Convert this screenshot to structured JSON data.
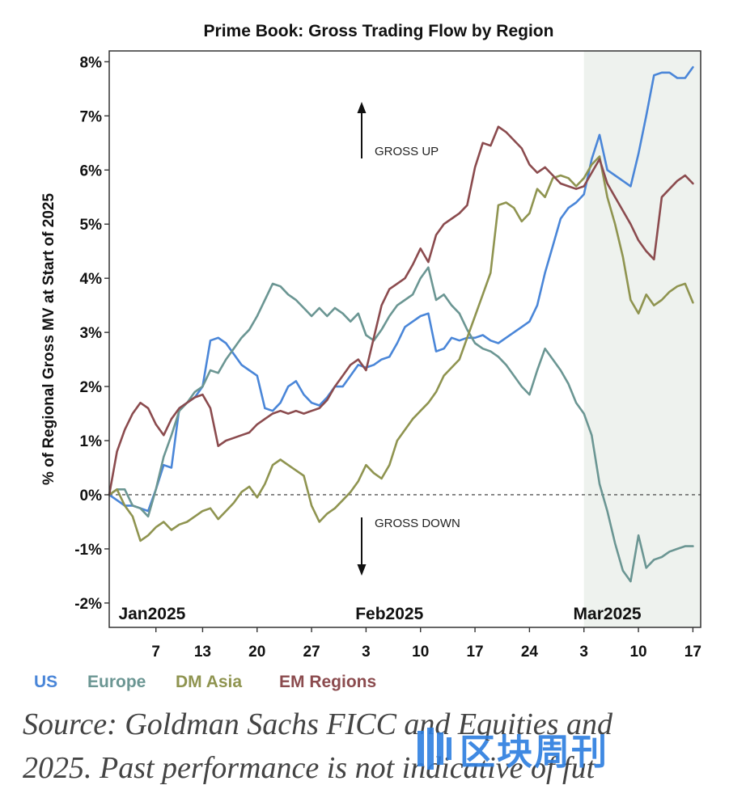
{
  "chart_data": {
    "type": "line",
    "title": "Prime Book: Gross Trading Flow by Region",
    "ylabel": "% of Regional Gross MV at Start of 2025",
    "ylim": [
      -2,
      8
    ],
    "xlim": [
      0,
      75
    ],
    "y_ticks": [
      {
        "v": 8,
        "label": "8%"
      },
      {
        "v": 7,
        "label": "7%"
      },
      {
        "v": 6,
        "label": "6%"
      },
      {
        "v": 5,
        "label": "5%"
      },
      {
        "v": 4,
        "label": "4%"
      },
      {
        "v": 3,
        "label": "3%"
      },
      {
        "v": 2,
        "label": "2%"
      },
      {
        "v": 1,
        "label": "1%"
      },
      {
        "v": 0,
        "label": "0%"
      },
      {
        "v": -1,
        "label": "-1%"
      },
      {
        "v": -2,
        "label": "-2%"
      }
    ],
    "x_ticks": [
      {
        "x": 6,
        "label": "7"
      },
      {
        "x": 12,
        "label": "13"
      },
      {
        "x": 19,
        "label": "20"
      },
      {
        "x": 26,
        "label": "27"
      },
      {
        "x": 33,
        "label": "3"
      },
      {
        "x": 40,
        "label": "10"
      },
      {
        "x": 47,
        "label": "17"
      },
      {
        "x": 54,
        "label": "24"
      },
      {
        "x": 61,
        "label": "3"
      },
      {
        "x": 68,
        "label": "10"
      },
      {
        "x": 75,
        "label": "17"
      }
    ],
    "month_labels": [
      {
        "x": 5.5,
        "label": "Jan2025"
      },
      {
        "x": 36,
        "label": "Feb2025"
      },
      {
        "x": 64,
        "label": "Mar2025"
      }
    ],
    "shaded_region": {
      "from": 61,
      "to": 76,
      "color": "#eef2ee"
    },
    "reference_line": {
      "y": 0,
      "style": "dashed"
    },
    "annotations": {
      "up": "GROSS UP",
      "down": "GROSS DOWN"
    },
    "series": [
      {
        "name": "US",
        "color": "#4a86d8",
        "x": [
          0,
          1,
          2,
          3,
          4,
          5,
          6,
          7,
          8,
          9,
          10,
          11,
          12,
          13,
          14,
          15,
          16,
          17,
          18,
          19,
          20,
          21,
          22,
          23,
          24,
          25,
          26,
          27,
          28,
          29,
          30,
          31,
          32,
          33,
          34,
          35,
          36,
          37,
          38,
          39,
          40,
          41,
          42,
          43,
          44,
          45,
          46,
          47,
          48,
          49,
          50,
          51,
          52,
          53,
          54,
          55,
          56,
          57,
          58,
          59,
          60,
          61,
          62,
          63,
          64,
          65,
          66,
          67,
          68,
          69,
          70,
          71,
          72,
          73,
          74,
          75
        ],
        "y": [
          0,
          -0.1,
          -0.2,
          -0.2,
          -0.25,
          -0.3,
          0.1,
          0.55,
          0.5,
          1.6,
          1.7,
          1.8,
          2.0,
          2.85,
          2.9,
          2.8,
          2.6,
          2.4,
          2.3,
          2.2,
          1.6,
          1.55,
          1.7,
          2.0,
          2.1,
          1.85,
          1.7,
          1.65,
          1.8,
          2.0,
          2.0,
          2.2,
          2.4,
          2.35,
          2.4,
          2.5,
          2.55,
          2.8,
          3.1,
          3.2,
          3.3,
          3.35,
          2.65,
          2.7,
          2.9,
          2.85,
          2.9,
          2.9,
          2.95,
          2.85,
          2.8,
          2.9,
          3.0,
          3.1,
          3.2,
          3.5,
          4.1,
          4.6,
          5.1,
          5.3,
          5.4,
          5.55,
          6.2,
          6.65,
          6.0,
          5.9,
          5.8,
          5.7,
          6.3,
          7.0,
          7.75,
          7.8,
          7.8,
          7.7,
          7.7,
          7.9
        ]
      },
      {
        "name": "Europe",
        "color": "#6b9693",
        "x": [
          0,
          1,
          2,
          3,
          4,
          5,
          6,
          7,
          8,
          9,
          10,
          11,
          12,
          13,
          14,
          15,
          16,
          17,
          18,
          19,
          20,
          21,
          22,
          23,
          24,
          25,
          26,
          27,
          28,
          29,
          30,
          31,
          32,
          33,
          34,
          35,
          36,
          37,
          38,
          39,
          40,
          41,
          42,
          43,
          44,
          45,
          46,
          47,
          48,
          49,
          50,
          51,
          52,
          53,
          54,
          55,
          56,
          57,
          58,
          59,
          60,
          61,
          62,
          63,
          64,
          65,
          66,
          67,
          68,
          69,
          70,
          71,
          72,
          73,
          74,
          75
        ],
        "y": [
          0,
          0.1,
          0.1,
          -0.2,
          -0.25,
          -0.4,
          0.1,
          0.7,
          1.1,
          1.55,
          1.7,
          1.9,
          2.0,
          2.3,
          2.25,
          2.5,
          2.7,
          2.9,
          3.05,
          3.3,
          3.6,
          3.9,
          3.85,
          3.7,
          3.6,
          3.45,
          3.3,
          3.45,
          3.3,
          3.45,
          3.35,
          3.2,
          3.35,
          2.95,
          2.85,
          3.05,
          3.3,
          3.5,
          3.6,
          3.7,
          4.0,
          4.2,
          3.6,
          3.7,
          3.5,
          3.35,
          3.05,
          2.8,
          2.7,
          2.65,
          2.55,
          2.4,
          2.2,
          2.0,
          1.85,
          2.3,
          2.7,
          2.5,
          2.3,
          2.05,
          1.7,
          1.5,
          1.1,
          0.2,
          -0.3,
          -0.9,
          -1.4,
          -1.6,
          -0.75,
          -1.35,
          -1.2,
          -1.15,
          -1.05,
          -1.0,
          -0.95,
          -0.95
        ]
      },
      {
        "name": "DM Asia",
        "color": "#8f9450",
        "x": [
          0,
          1,
          2,
          3,
          4,
          5,
          6,
          7,
          8,
          9,
          10,
          11,
          12,
          13,
          14,
          15,
          16,
          17,
          18,
          19,
          20,
          21,
          22,
          23,
          24,
          25,
          26,
          27,
          28,
          29,
          30,
          31,
          32,
          33,
          34,
          35,
          36,
          37,
          38,
          39,
          40,
          41,
          42,
          43,
          44,
          45,
          46,
          47,
          48,
          49,
          50,
          51,
          52,
          53,
          54,
          55,
          56,
          57,
          58,
          59,
          60,
          61,
          62,
          63,
          64,
          65,
          66,
          67,
          68,
          69,
          70,
          71,
          72,
          73,
          74,
          75
        ],
        "y": [
          0,
          0.1,
          -0.2,
          -0.4,
          -0.85,
          -0.75,
          -0.6,
          -0.5,
          -0.65,
          -0.55,
          -0.5,
          -0.4,
          -0.3,
          -0.25,
          -0.45,
          -0.3,
          -0.15,
          0.05,
          0.15,
          -0.05,
          0.2,
          0.55,
          0.65,
          0.55,
          0.45,
          0.35,
          -0.2,
          -0.5,
          -0.35,
          -0.25,
          -0.1,
          0.05,
          0.25,
          0.55,
          0.4,
          0.3,
          0.55,
          1.0,
          1.2,
          1.4,
          1.55,
          1.7,
          1.9,
          2.2,
          2.35,
          2.5,
          2.9,
          3.3,
          3.7,
          4.1,
          5.35,
          5.4,
          5.3,
          5.05,
          5.2,
          5.65,
          5.5,
          5.85,
          5.9,
          5.85,
          5.7,
          5.85,
          6.1,
          6.25,
          5.5,
          5.0,
          4.4,
          3.6,
          3.35,
          3.7,
          3.5,
          3.6,
          3.75,
          3.85,
          3.9,
          3.55
        ]
      },
      {
        "name": "EM Regions",
        "color": "#8b4b4e",
        "x": [
          0,
          1,
          2,
          3,
          4,
          5,
          6,
          7,
          8,
          9,
          10,
          11,
          12,
          13,
          14,
          15,
          16,
          17,
          18,
          19,
          20,
          21,
          22,
          23,
          24,
          25,
          26,
          27,
          28,
          29,
          30,
          31,
          32,
          33,
          34,
          35,
          36,
          37,
          38,
          39,
          40,
          41,
          42,
          43,
          44,
          45,
          46,
          47,
          48,
          49,
          50,
          51,
          52,
          53,
          54,
          55,
          56,
          57,
          58,
          59,
          60,
          61,
          62,
          63,
          64,
          65,
          66,
          67,
          68,
          69,
          70,
          71,
          72,
          73,
          74,
          75
        ],
        "y": [
          0,
          0.8,
          1.2,
          1.5,
          1.7,
          1.6,
          1.3,
          1.1,
          1.4,
          1.6,
          1.7,
          1.8,
          1.85,
          1.6,
          0.9,
          1.0,
          1.05,
          1.1,
          1.15,
          1.3,
          1.4,
          1.5,
          1.55,
          1.5,
          1.55,
          1.5,
          1.55,
          1.6,
          1.75,
          2.0,
          2.2,
          2.4,
          2.5,
          2.3,
          2.9,
          3.5,
          3.8,
          3.9,
          4.0,
          4.25,
          4.55,
          4.3,
          4.8,
          5.0,
          5.1,
          5.2,
          5.35,
          6.05,
          6.5,
          6.45,
          6.8,
          6.7,
          6.55,
          6.4,
          6.1,
          5.95,
          6.05,
          5.9,
          5.75,
          5.7,
          5.65,
          5.7,
          5.95,
          6.2,
          5.75,
          5.5,
          5.25,
          5.0,
          4.7,
          4.5,
          4.35,
          5.5,
          5.65,
          5.8,
          5.9,
          5.75
        ]
      }
    ]
  },
  "legend": [
    {
      "name": "US",
      "color": "#4a86d8"
    },
    {
      "name": "Europe",
      "color": "#6b9693"
    },
    {
      "name": "DM Asia",
      "color": "#8f9450"
    },
    {
      "name": "EM Regions",
      "color": "#8b4b4e"
    }
  ],
  "source": {
    "line1": "Source: Goldman Sachs FICC and Equities and",
    "line2": "2025. Past performance is not indicative of fut"
  },
  "watermark": {
    "text": "区块周刊",
    "color": "#2f7fe0"
  }
}
